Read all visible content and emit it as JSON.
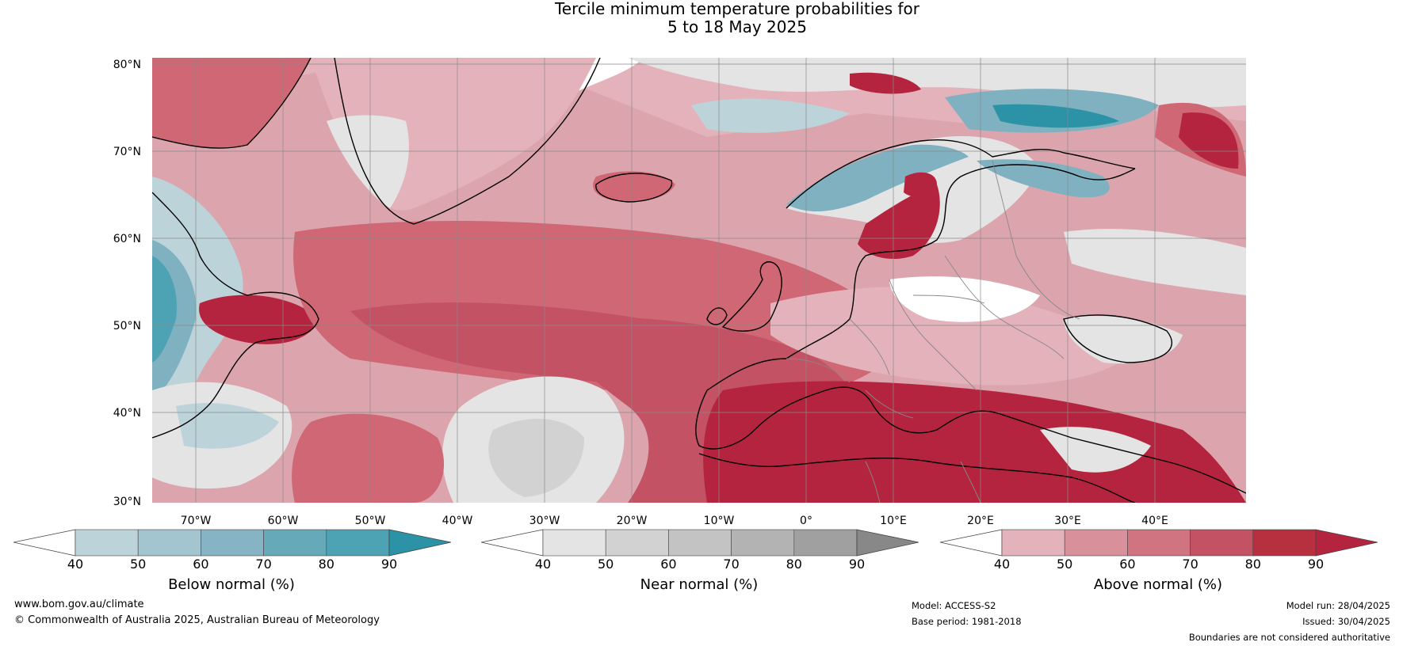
{
  "title": {
    "line1": "Tercile minimum temperature probabilities for",
    "line2": "5 to 18 May 2025"
  },
  "map": {
    "lat_labels": [
      "80°N",
      "70°N",
      "60°N",
      "50°N",
      "40°N",
      "30°N"
    ],
    "lon_labels": [
      "70°W",
      "60°W",
      "50°W",
      "40°W",
      "30°W",
      "20°W",
      "10°W",
      "0°",
      "10°E",
      "20°E",
      "30°E",
      "40°E"
    ],
    "region_colors": {
      "above_strong": "#b5243e",
      "above_mid": "#cf6775",
      "above_light": "#e3b2ba",
      "below_strong": "#2c92a6",
      "below_mid": "#7fb1c1",
      "below_light": "#bcd3da",
      "near_light": "#e4e4e4",
      "near_mid": "#c8c8c8",
      "no_signal": "#ffffff",
      "coast": "#000000",
      "border": "#888888",
      "grid": "#8a8a8a"
    }
  },
  "colorbars": [
    {
      "id": "below",
      "title": "Below normal (%)",
      "ticks": [
        "40",
        "50",
        "60",
        "70",
        "80",
        "90"
      ],
      "colors": [
        "#ffffff",
        "#bcd3da",
        "#a3c5cf",
        "#86b4c4",
        "#66a9b8",
        "#4da2b3",
        "#2c92a6"
      ]
    },
    {
      "id": "near",
      "title": "Near normal (%)",
      "ticks": [
        "40",
        "50",
        "60",
        "70",
        "80",
        "90"
      ],
      "colors": [
        "#ffffff",
        "#e4e4e4",
        "#d2d2d2",
        "#c3c3c3",
        "#b3b3b3",
        "#a0a0a0",
        "#888888"
      ]
    },
    {
      "id": "above",
      "title": "Above normal (%)",
      "ticks": [
        "40",
        "50",
        "60",
        "70",
        "80",
        "90"
      ],
      "colors": [
        "#ffffff",
        "#e3b2ba",
        "#d8919b",
        "#cf7480",
        "#c35264",
        "#b6303f",
        "#b5243e"
      ]
    }
  ],
  "footer": {
    "website": "www.bom.gov.au/climate",
    "copyright": "© Commonwealth of Australia 2025, Australian Bureau of Meteorology",
    "model": "Model: ACCESS-S2",
    "base_period": "Base period: 1981-2018",
    "model_run": "Model run: 28/04/2025",
    "issued": "Issued: 30/04/2025",
    "disclaimer": "Boundaries are not considered authoritative"
  }
}
